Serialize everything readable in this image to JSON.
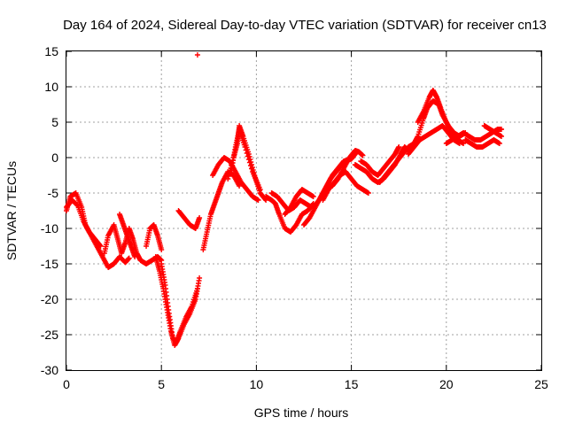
{
  "chart_data": {
    "type": "scatter",
    "title": "Day 164 of 2024, Sidereal Day-to-day VTEC variation (SDTVAR) for receiver cn13",
    "xlabel": "GPS time / hours",
    "ylabel": "SDTVAR / TECUs",
    "xlim": [
      0,
      25
    ],
    "ylim": [
      -30,
      15
    ],
    "xticks": [
      "0",
      "5",
      "10",
      "15",
      "20",
      "25"
    ],
    "yticks": [
      "15",
      "10",
      "5",
      "0",
      "-5",
      "-10",
      "-15",
      "-20",
      "-25",
      "-30"
    ],
    "grid": true,
    "marker": "+",
    "color": "#ff0000",
    "series": [
      {
        "name": "SDTVAR",
        "tracks": [
          [
            [
              0.0,
              -7.5
            ],
            [
              0.2,
              -5.5
            ],
            [
              0.5,
              -5.0
            ],
            [
              0.8,
              -7.0
            ],
            [
              1.0,
              -9.5
            ],
            [
              1.3,
              -11.0
            ],
            [
              1.6,
              -12.5
            ],
            [
              1.9,
              -14.0
            ],
            [
              2.2,
              -15.5
            ],
            [
              2.5,
              -15.0
            ],
            [
              2.8,
              -14.0
            ],
            [
              3.1,
              -14.8
            ],
            [
              3.3,
              -14.2
            ]
          ],
          [
            [
              0.0,
              -7.0
            ],
            [
              0.3,
              -6.0
            ],
            [
              0.6,
              -6.8
            ],
            [
              0.9,
              -9.0
            ],
            [
              1.2,
              -10.5
            ],
            [
              1.5,
              -11.5
            ],
            [
              1.8,
              -12.5
            ]
          ],
          [
            [
              2.0,
              -13.5
            ],
            [
              2.2,
              -11.0
            ],
            [
              2.5,
              -9.5
            ],
            [
              2.7,
              -11.5
            ],
            [
              2.9,
              -13.5
            ],
            [
              3.1,
              -12.0
            ],
            [
              3.3,
              -10.0
            ],
            [
              3.5,
              -11.5
            ],
            [
              3.7,
              -13.5
            ],
            [
              3.9,
              -14.5
            ],
            [
              4.2,
              -15.0
            ],
            [
              4.5,
              -14.5
            ],
            [
              4.8,
              -14.0
            ],
            [
              5.0,
              -14.5
            ]
          ],
          [
            [
              2.8,
              -8.0
            ],
            [
              3.0,
              -9.5
            ],
            [
              3.2,
              -11.0
            ],
            [
              3.4,
              -12.5
            ],
            [
              3.6,
              -14.0
            ]
          ],
          [
            [
              4.2,
              -12.5
            ],
            [
              4.4,
              -10.0
            ],
            [
              4.6,
              -9.5
            ],
            [
              4.8,
              -11.0
            ],
            [
              5.0,
              -13.0
            ]
          ],
          [
            [
              4.7,
              -14.0
            ],
            [
              4.9,
              -16.0
            ],
            [
              5.1,
              -18.5
            ],
            [
              5.3,
              -21.5
            ],
            [
              5.5,
              -24.5
            ],
            [
              5.7,
              -26.5
            ],
            [
              5.9,
              -25.5
            ],
            [
              6.2,
              -23.5
            ],
            [
              6.5,
              -22.0
            ],
            [
              6.8,
              -20.0
            ],
            [
              7.0,
              -17.0
            ]
          ],
          [
            [
              5.0,
              -15.0
            ],
            [
              5.2,
              -18.0
            ],
            [
              5.4,
              -22.0
            ],
            [
              5.6,
              -25.5
            ],
            [
              5.8,
              -26.0
            ],
            [
              6.0,
              -24.5
            ],
            [
              6.3,
              -22.5
            ],
            [
              6.6,
              -21.0
            ],
            [
              6.9,
              -18.5
            ]
          ],
          [
            [
              5.9,
              -7.5
            ],
            [
              6.2,
              -8.5
            ],
            [
              6.5,
              -9.5
            ],
            [
              6.8,
              -10.0
            ],
            [
              7.0,
              -8.5
            ]
          ],
          [
            [
              7.2,
              -13.0
            ],
            [
              7.4,
              -10.5
            ],
            [
              7.6,
              -8.0
            ],
            [
              7.8,
              -6.5
            ],
            [
              8.0,
              -5.0
            ],
            [
              8.2,
              -3.5
            ],
            [
              8.5,
              -2.0
            ],
            [
              8.8,
              -2.5
            ],
            [
              9.1,
              -4.0
            ]
          ],
          [
            [
              7.7,
              -2.5
            ],
            [
              8.0,
              -1.0
            ],
            [
              8.3,
              0.0
            ],
            [
              8.6,
              -0.5
            ],
            [
              8.9,
              -2.0
            ],
            [
              9.2,
              -3.5
            ],
            [
              9.5,
              -4.5
            ],
            [
              9.8,
              -5.5
            ],
            [
              10.1,
              -6.0
            ]
          ],
          [
            [
              8.5,
              -3.0
            ],
            [
              8.8,
              0.0
            ],
            [
              9.0,
              2.0
            ],
            [
              9.1,
              4.5
            ],
            [
              9.3,
              3.0
            ],
            [
              9.6,
              0.5
            ],
            [
              9.9,
              -2.5
            ],
            [
              10.2,
              -5.0
            ],
            [
              10.5,
              -6.0
            ]
          ],
          [
            [
              8.7,
              -1.5
            ],
            [
              8.9,
              1.5
            ],
            [
              9.1,
              4.0
            ],
            [
              9.4,
              1.5
            ],
            [
              9.8,
              -2.0
            ],
            [
              10.2,
              -4.5
            ]
          ],
          [
            [
              6.9,
              14.5
            ]
          ],
          [
            [
              10.5,
              -5.5
            ],
            [
              10.8,
              -6.0
            ],
            [
              11.0,
              -6.5
            ],
            [
              11.2,
              -8.0
            ],
            [
              11.5,
              -10.0
            ],
            [
              11.8,
              -10.5
            ],
            [
              12.1,
              -9.5
            ],
            [
              12.4,
              -8.0
            ],
            [
              12.7,
              -7.5
            ],
            [
              13.0,
              -6.5
            ]
          ],
          [
            [
              10.8,
              -5.0
            ],
            [
              11.1,
              -5.5
            ],
            [
              11.4,
              -6.5
            ],
            [
              11.7,
              -7.5
            ],
            [
              12.0,
              -7.0
            ],
            [
              12.3,
              -6.0
            ],
            [
              12.6,
              -6.5
            ],
            [
              12.9,
              -7.0
            ]
          ],
          [
            [
              11.5,
              -8.0
            ],
            [
              11.8,
              -7.0
            ],
            [
              12.1,
              -5.5
            ],
            [
              12.4,
              -4.5
            ],
            [
              12.7,
              -5.0
            ],
            [
              13.0,
              -5.5
            ]
          ],
          [
            [
              12.5,
              -9.5
            ],
            [
              12.8,
              -8.5
            ],
            [
              13.1,
              -7.0
            ],
            [
              13.4,
              -5.5
            ],
            [
              13.7,
              -4.0
            ],
            [
              14.0,
              -2.5
            ],
            [
              14.3,
              -1.5
            ],
            [
              14.6,
              -0.5
            ],
            [
              15.0,
              -0.2
            ],
            [
              15.2,
              0.5
            ]
          ],
          [
            [
              13.0,
              -7.0
            ],
            [
              13.3,
              -6.0
            ],
            [
              13.6,
              -4.5
            ],
            [
              13.9,
              -3.0
            ],
            [
              14.2,
              -2.0
            ],
            [
              14.5,
              -1.0
            ],
            [
              14.8,
              -0.5
            ]
          ],
          [
            [
              13.5,
              -6.0
            ],
            [
              13.8,
              -4.5
            ],
            [
              14.1,
              -3.5
            ],
            [
              14.4,
              -2.5
            ],
            [
              14.7,
              -2.0
            ],
            [
              15.0,
              -3.0
            ],
            [
              15.3,
              -4.0
            ],
            [
              15.6,
              -4.5
            ],
            [
              15.9,
              -5.0
            ]
          ],
          [
            [
              14.0,
              -4.0
            ],
            [
              14.3,
              -3.0
            ],
            [
              14.6,
              -1.5
            ],
            [
              14.9,
              0.0
            ],
            [
              15.2,
              1.0
            ],
            [
              15.4,
              0.8
            ],
            [
              15.6,
              0.3
            ]
          ],
          [
            [
              15.2,
              -1.0
            ],
            [
              15.5,
              -1.5
            ],
            [
              15.8,
              -2.0
            ],
            [
              16.1,
              -3.0
            ],
            [
              16.4,
              -3.5
            ],
            [
              16.7,
              -3.0
            ],
            [
              17.0,
              -2.0
            ],
            [
              17.3,
              -1.0
            ],
            [
              17.6,
              0.5
            ],
            [
              17.8,
              1.5
            ],
            [
              18.0,
              1.0
            ]
          ],
          [
            [
              15.5,
              -0.5
            ],
            [
              15.8,
              -1.0
            ],
            [
              16.1,
              -2.0
            ],
            [
              16.4,
              -2.5
            ],
            [
              16.7,
              -1.5
            ],
            [
              17.0,
              -0.5
            ],
            [
              17.3,
              0.5
            ],
            [
              17.5,
              1.5
            ]
          ],
          [
            [
              16.5,
              -3.5
            ],
            [
              16.8,
              -2.5
            ],
            [
              17.1,
              -1.5
            ],
            [
              17.4,
              -0.5
            ],
            [
              17.7,
              0.5
            ],
            [
              18.0,
              1.5
            ],
            [
              18.3,
              2.0
            ],
            [
              18.5,
              3.0
            ],
            [
              18.8,
              5.5
            ],
            [
              19.0,
              7.0
            ],
            [
              19.3,
              8.0
            ],
            [
              19.6,
              7.5
            ],
            [
              19.8,
              6.0
            ],
            [
              20.1,
              4.5
            ],
            [
              20.4,
              3.5
            ],
            [
              20.7,
              3.0
            ],
            [
              21.0,
              3.5
            ]
          ],
          [
            [
              18.0,
              0.5
            ],
            [
              18.3,
              1.5
            ],
            [
              18.6,
              2.5
            ],
            [
              18.9,
              3.0
            ],
            [
              19.2,
              3.5
            ],
            [
              19.5,
              4.0
            ],
            [
              19.8,
              4.5
            ],
            [
              20.1,
              3.5
            ],
            [
              20.4,
              2.5
            ],
            [
              20.7,
              2.0
            ]
          ],
          [
            [
              18.5,
              5.0
            ],
            [
              18.8,
              6.5
            ],
            [
              19.1,
              8.5
            ],
            [
              19.3,
              9.5
            ],
            [
              19.5,
              8.5
            ],
            [
              19.7,
              7.0
            ],
            [
              20.0,
              5.0
            ],
            [
              20.3,
              3.5
            ],
            [
              20.6,
              2.5
            ],
            [
              20.9,
              2.0
            ]
          ],
          [
            [
              20.0,
              2.0
            ],
            [
              20.3,
              2.5
            ],
            [
              20.6,
              3.0
            ],
            [
              20.9,
              3.5
            ],
            [
              21.2,
              3.0
            ],
            [
              21.5,
              2.5
            ],
            [
              21.8,
              2.5
            ],
            [
              22.1,
              3.0
            ],
            [
              22.4,
              3.5
            ],
            [
              22.7,
              4.0
            ],
            [
              22.9,
              4.0
            ]
          ],
          [
            [
              21.0,
              2.5
            ],
            [
              21.3,
              2.0
            ],
            [
              21.6,
              1.5
            ],
            [
              21.9,
              1.5
            ],
            [
              22.2,
              2.0
            ],
            [
              22.5,
              2.5
            ],
            [
              22.8,
              2.0
            ]
          ],
          [
            [
              22.0,
              4.5
            ],
            [
              22.3,
              4.0
            ],
            [
              22.6,
              3.5
            ],
            [
              22.9,
              3.0
            ]
          ]
        ]
      }
    ]
  }
}
